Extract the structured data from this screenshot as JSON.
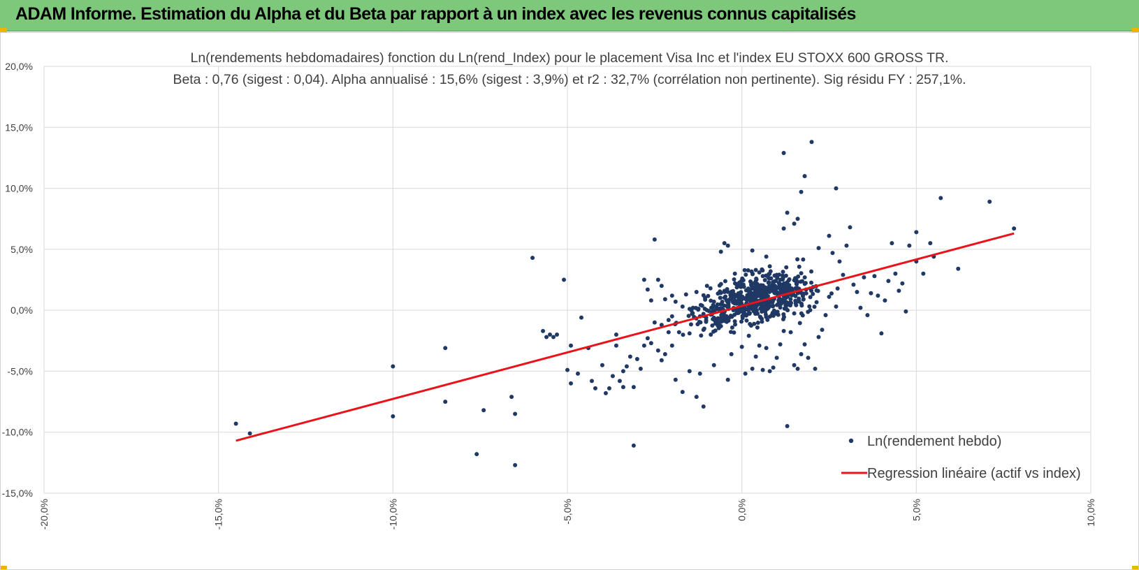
{
  "banner": {
    "title": "ADAM Informe. Estimation du Alpha et du Beta par rapport à un index avec les revenus connus capitalisés",
    "background": "#7dc87b"
  },
  "chart_data": {
    "type": "scatter",
    "title": "Ln(rendements hebdomadaires) fonction du Ln(rend_Index) pour le placement Visa Inc et l'index EU STOXX 600 GROSS TR.",
    "subtitle": "Beta : 0,76 (sigest : 0,04).  Alpha annualisé : 15,6% (sigest : 3,9%) et r2 : 32,7% (corrélation non pertinente). Sig résidu FY : 257,1%.",
    "xlabel": "",
    "ylabel": "",
    "xlim": [
      -0.2,
      0.1
    ],
    "ylim": [
      -0.15,
      0.2
    ],
    "xticks": [
      -0.2,
      -0.15,
      -0.1,
      -0.05,
      0.0,
      0.05,
      0.1
    ],
    "yticks": [
      -0.15,
      -0.1,
      -0.05,
      0.0,
      0.05,
      0.1,
      0.15,
      0.2
    ],
    "xtick_labels": [
      "-20,0%",
      "-15,0%",
      "-10,0%",
      "-5,0%",
      "0,0%",
      "5,0%",
      "10,0%"
    ],
    "ytick_labels": [
      "-15,0%",
      "-10,0%",
      "-5,0%",
      "0,0%",
      "5,0%",
      "10,0%",
      "15,0%",
      "20,0%"
    ],
    "grid": true,
    "legend_position": "bottom-right",
    "series": [
      {
        "name": "Ln(rendement hebdo)",
        "kind": "scatter",
        "color": "#1f3864",
        "points": [
          [
            -0.145,
            -0.093
          ],
          [
            -0.141,
            -0.101
          ],
          [
            -0.1,
            -0.087
          ],
          [
            -0.1,
            -0.046
          ],
          [
            -0.085,
            -0.031
          ],
          [
            -0.085,
            -0.075
          ],
          [
            -0.076,
            -0.118
          ],
          [
            -0.074,
            -0.082
          ],
          [
            -0.066,
            -0.071
          ],
          [
            -0.065,
            -0.085
          ],
          [
            -0.065,
            -0.127
          ],
          [
            -0.06,
            0.043
          ],
          [
            -0.051,
            0.025
          ],
          [
            -0.057,
            -0.017
          ],
          [
            -0.056,
            -0.022
          ],
          [
            -0.055,
            -0.02
          ],
          [
            -0.054,
            -0.022
          ],
          [
            -0.053,
            -0.02
          ],
          [
            -0.05,
            -0.049
          ],
          [
            -0.049,
            -0.029
          ],
          [
            -0.046,
            -0.006
          ],
          [
            -0.047,
            -0.052
          ],
          [
            -0.049,
            -0.06
          ],
          [
            -0.044,
            -0.031
          ],
          [
            -0.043,
            -0.058
          ],
          [
            -0.042,
            -0.064
          ],
          [
            -0.04,
            -0.045
          ],
          [
            -0.039,
            -0.068
          ],
          [
            -0.038,
            -0.064
          ],
          [
            -0.037,
            -0.054
          ],
          [
            -0.036,
            -0.029
          ],
          [
            -0.036,
            -0.02
          ],
          [
            -0.035,
            -0.058
          ],
          [
            -0.034,
            -0.063
          ],
          [
            -0.034,
            -0.05
          ],
          [
            -0.033,
            -0.046
          ],
          [
            -0.032,
            -0.038
          ],
          [
            -0.031,
            -0.063
          ],
          [
            -0.03,
            -0.04
          ],
          [
            -0.029,
            -0.048
          ],
          [
            -0.028,
            -0.029
          ],
          [
            -0.027,
            -0.023
          ],
          [
            -0.026,
            -0.027
          ],
          [
            -0.025,
            -0.01
          ],
          [
            -0.024,
            -0.033
          ],
          [
            -0.023,
            -0.041
          ],
          [
            -0.022,
            -0.036
          ],
          [
            -0.021,
            -0.018
          ],
          [
            -0.02,
            -0.029
          ],
          [
            -0.019,
            -0.057
          ],
          [
            -0.017,
            -0.067
          ],
          [
            -0.031,
            -0.111
          ],
          [
            -0.023,
            -0.012
          ],
          [
            -0.027,
            0.017
          ],
          [
            -0.026,
            0.008
          ],
          [
            -0.028,
            0.025
          ],
          [
            -0.024,
            0.025
          ],
          [
            -0.025,
            0.058
          ],
          [
            -0.023,
            0.02
          ],
          [
            -0.022,
            0.009
          ],
          [
            -0.021,
            -0.008
          ],
          [
            -0.02,
            -0.005
          ],
          [
            -0.02,
            0.012
          ],
          [
            -0.019,
            0.007
          ],
          [
            -0.018,
            -0.018
          ],
          [
            -0.017,
            0.003
          ],
          [
            -0.016,
            0.013
          ],
          [
            -0.015,
            -0.019
          ],
          [
            -0.014,
            0.002
          ],
          [
            -0.013,
            0.015
          ],
          [
            -0.012,
            -0.005
          ],
          [
            -0.011,
            -0.016
          ],
          [
            -0.01,
            0.02
          ],
          [
            -0.009,
            0.018
          ],
          [
            -0.008,
            0.007
          ],
          [
            -0.007,
            0.001
          ],
          [
            -0.006,
            -0.013
          ],
          [
            -0.005,
            0.015
          ],
          [
            -0.005,
            0.055
          ],
          [
            -0.006,
            0.048
          ],
          [
            -0.004,
            0.053
          ],
          [
            -0.011,
            -0.079
          ],
          [
            -0.013,
            -0.071
          ],
          [
            -0.015,
            -0.05
          ],
          [
            -0.012,
            -0.052
          ],
          [
            -0.008,
            -0.045
          ],
          [
            -0.004,
            -0.057
          ],
          [
            -0.003,
            -0.036
          ],
          [
            -0.002,
            0.03
          ],
          [
            -0.001,
            0.021
          ],
          [
            0.0,
            -0.03
          ],
          [
            0.001,
            -0.052
          ],
          [
            0.002,
            -0.021
          ],
          [
            0.003,
            -0.048
          ],
          [
            0.004,
            -0.038
          ],
          [
            0.005,
            -0.029
          ],
          [
            0.006,
            -0.049
          ],
          [
            0.007,
            -0.031
          ],
          [
            0.003,
            0.049
          ],
          [
            0.004,
            0.033
          ],
          [
            0.005,
            0.031
          ],
          [
            0.006,
            0.028
          ],
          [
            0.007,
            0.044
          ],
          [
            0.008,
            0.036
          ],
          [
            0.009,
            0.022
          ],
          [
            0.01,
            0.029
          ],
          [
            0.011,
            0.025
          ],
          [
            0.012,
            0.067
          ],
          [
            0.012,
            0.129
          ],
          [
            0.015,
            0.071
          ],
          [
            0.016,
            0.075
          ],
          [
            0.017,
            0.097
          ],
          [
            0.018,
            0.11
          ],
          [
            0.013,
            0.08
          ],
          [
            0.02,
            0.138
          ],
          [
            0.022,
            0.051
          ],
          [
            0.025,
            0.061
          ],
          [
            0.026,
            0.047
          ],
          [
            0.027,
            0.1
          ],
          [
            0.028,
            0.04
          ],
          [
            0.029,
            0.029
          ],
          [
            0.03,
            0.053
          ],
          [
            0.031,
            0.068
          ],
          [
            0.032,
            0.021
          ],
          [
            0.033,
            0.015
          ],
          [
            0.034,
            0.002
          ],
          [
            0.035,
            0.027
          ],
          [
            0.036,
            -0.004
          ],
          [
            0.037,
            0.014
          ],
          [
            0.038,
            0.028
          ],
          [
            0.039,
            0.012
          ],
          [
            0.04,
            -0.019
          ],
          [
            0.041,
            0.008
          ],
          [
            0.042,
            0.024
          ],
          [
            0.043,
            0.055
          ],
          [
            0.044,
            0.03
          ],
          [
            0.045,
            0.016
          ],
          [
            0.046,
            0.022
          ],
          [
            0.047,
            -0.001
          ],
          [
            0.048,
            0.053
          ],
          [
            0.05,
            0.064
          ],
          [
            0.05,
            0.04
          ],
          [
            0.052,
            0.03
          ],
          [
            0.054,
            0.055
          ],
          [
            0.055,
            0.044
          ],
          [
            0.057,
            0.092
          ],
          [
            0.062,
            0.034
          ],
          [
            0.071,
            0.089
          ],
          [
            0.078,
            0.067
          ],
          [
            0.013,
            -0.095
          ],
          [
            0.015,
            -0.045
          ],
          [
            0.016,
            -0.048
          ],
          [
            0.018,
            -0.028
          ],
          [
            0.019,
            -0.039
          ],
          [
            0.021,
            -0.048
          ],
          [
            0.023,
            -0.016
          ],
          [
            0.024,
            -0.004
          ],
          [
            0.025,
            0.011
          ],
          [
            0.027,
            0.003
          ],
          [
            0.014,
            -0.018
          ],
          [
            0.017,
            -0.036
          ],
          [
            0.022,
            -0.022
          ],
          [
            0.008,
            -0.05
          ],
          [
            0.009,
            -0.047
          ],
          [
            0.01,
            -0.039
          ],
          [
            0.011,
            -0.028
          ],
          [
            0.012,
            -0.017
          ]
        ]
      },
      {
        "name": "Regression linéaire (actif vs index)",
        "kind": "line",
        "color": "#e8141a",
        "points": [
          [
            -0.145,
            -0.107
          ],
          [
            0.078,
            0.063
          ]
        ]
      }
    ]
  }
}
